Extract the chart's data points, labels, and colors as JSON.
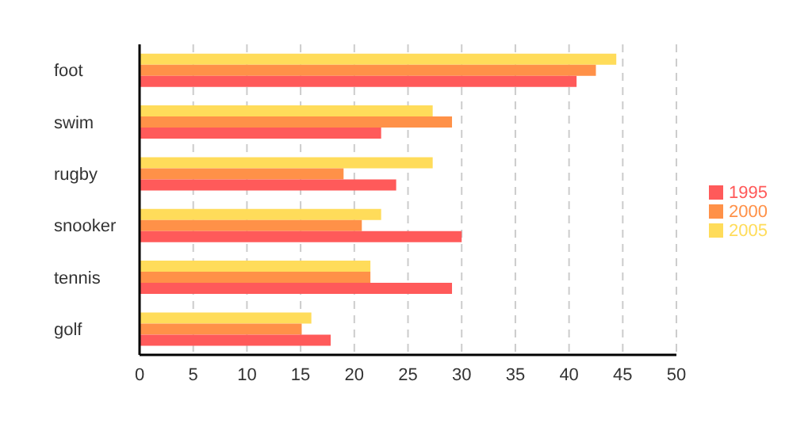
{
  "chart_data": {
    "type": "bar",
    "orientation": "horizontal",
    "categories": [
      "foot",
      "swim",
      "rugby",
      "snooker",
      "tennis",
      "golf"
    ],
    "series": [
      {
        "name": "2005",
        "color": "#ffdc5a",
        "values": [
          44.4,
          27.3,
          27.3,
          22.5,
          21.5,
          16
        ]
      },
      {
        "name": "2000",
        "color": "#ff9148",
        "values": [
          42.5,
          29.1,
          19,
          20.7,
          21.5,
          15.1
        ]
      },
      {
        "name": "1995",
        "color": "#ff5a5a",
        "values": [
          40.7,
          22.5,
          23.9,
          30,
          29.1,
          17.8
        ]
      }
    ],
    "xlim": [
      0,
      50
    ],
    "xticks": [
      0,
      5,
      10,
      15,
      20,
      25,
      30,
      35,
      40,
      45,
      50
    ],
    "grid": "x",
    "legend": "right"
  }
}
